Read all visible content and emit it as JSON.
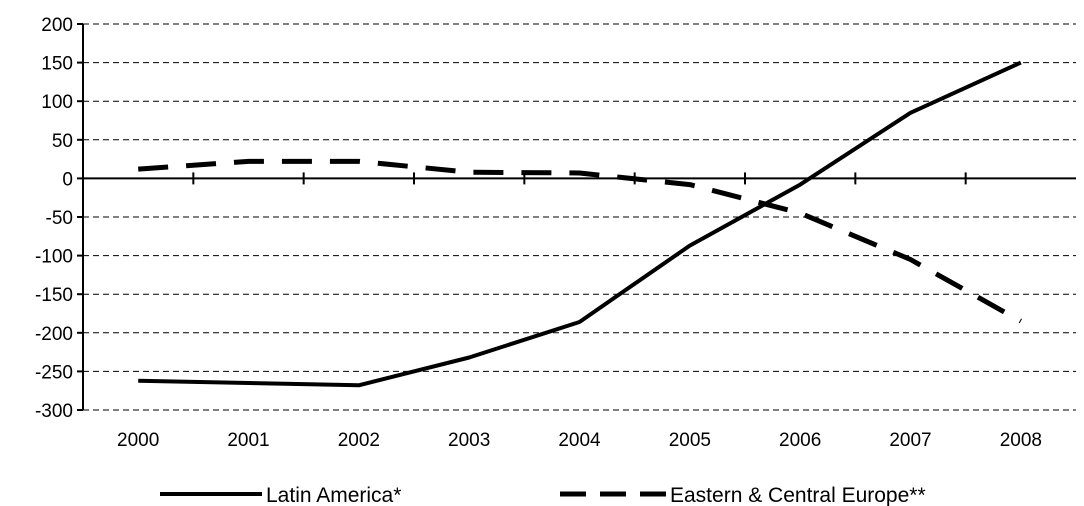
{
  "chart_data": {
    "type": "line",
    "categories": [
      "2000",
      "2001",
      "2002",
      "2003",
      "2004",
      "2005",
      "2006",
      "2007",
      "2008"
    ],
    "ylim": [
      -300,
      200
    ],
    "yticks": [
      200,
      150,
      100,
      50,
      0,
      -50,
      -100,
      -150,
      -200,
      -250,
      -300
    ],
    "grid": "horizontal dashed",
    "legend_position": "bottom",
    "series": [
      {
        "name": "Latin America*",
        "style": "solid",
        "color": "#000000",
        "x": [
          2000,
          2001,
          2002,
          2003,
          2004,
          2005,
          2006,
          2007,
          2008
        ],
        "values": [
          -262,
          -265,
          -268,
          -232,
          -186,
          -87,
          -8,
          85,
          150
        ]
      },
      {
        "name": "Eastern & Central Europe**",
        "style": "dashed",
        "color": "#000000",
        "x": [
          2000,
          2001,
          2002,
          2003,
          2004,
          2005,
          2006,
          2007,
          2008
        ],
        "values": [
          12,
          22,
          22,
          8,
          7,
          -8,
          -45,
          -105,
          -185
        ]
      }
    ]
  }
}
